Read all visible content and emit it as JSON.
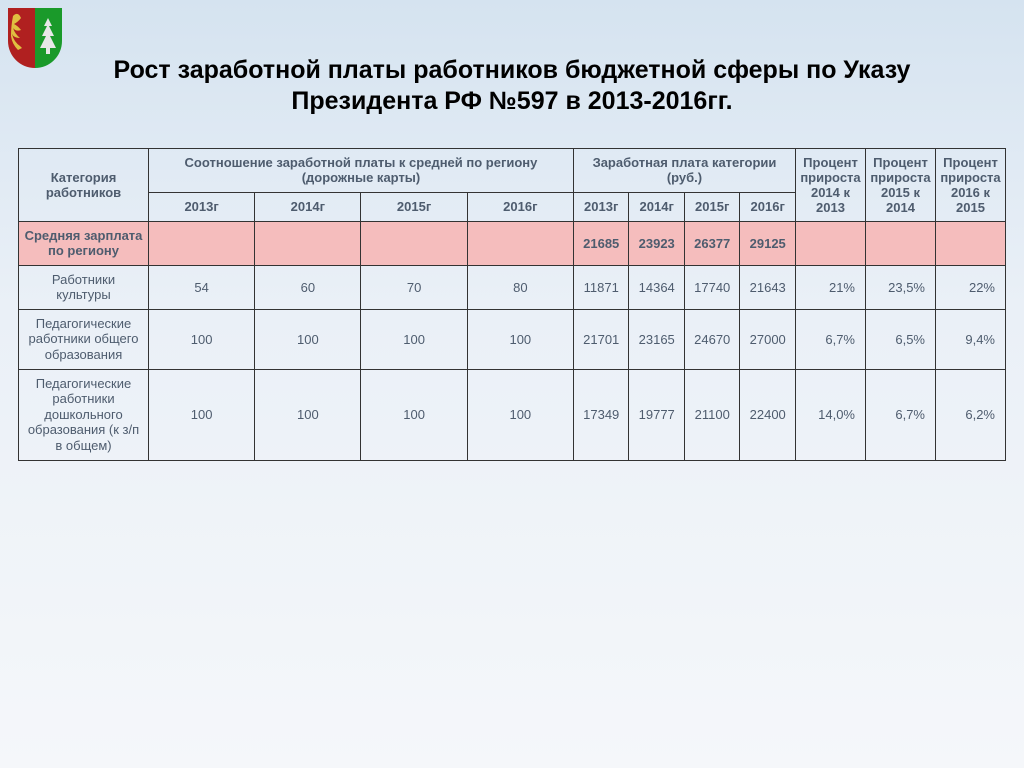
{
  "title": "Рост заработной платы работников бюджетной сферы по Указу Президента РФ №597 в 2013-2016гг.",
  "headers": {
    "category": "Категория работников",
    "ratio": "Соотношение заработной платы к средней по региону (дорожные карты)",
    "salary": "Заработная плата категории (руб.)",
    "pct1": "Процент прироста 2014 к 2013",
    "pct2": "Процент прироста 2015 к 2014",
    "pct3": "Процент прироста 2016 к 2015",
    "y2013": "2013г",
    "y2014": "2014г",
    "y2015": "2015г",
    "y2016": "2016г"
  },
  "rows": [
    {
      "label": "Средняя зарплата по региону",
      "hl": true,
      "ratio": [
        "",
        "",
        "",
        ""
      ],
      "salary": [
        "21685",
        "23923",
        "26377",
        "29125"
      ],
      "pct": [
        "",
        "",
        ""
      ]
    },
    {
      "label": "Работники культуры",
      "ratio": [
        "54",
        "60",
        "70",
        "80"
      ],
      "salary": [
        "11871",
        "14364",
        "17740",
        "21643"
      ],
      "pct": [
        "21%",
        "23,5%",
        "22%"
      ]
    },
    {
      "label": "Педагогические работники общего образования",
      "ratio": [
        "100",
        "100",
        "100",
        "100"
      ],
      "salary": [
        "21701",
        "23165",
        "24670",
        "27000"
      ],
      "pct": [
        "6,7%",
        "6,5%",
        "9,4%"
      ]
    },
    {
      "label": "Педагогические работники дошкольного образования (к з/п в общем)",
      "ratio": [
        "100",
        "100",
        "100",
        "100"
      ],
      "salary": [
        "17349",
        "19777",
        "21100",
        "22400"
      ],
      "pct": [
        "14,0%",
        "6,7%",
        "6,2%"
      ]
    }
  ],
  "colors": {
    "highlight": "#f5bdbd",
    "border": "#333333",
    "text": "#4e5c6e"
  }
}
